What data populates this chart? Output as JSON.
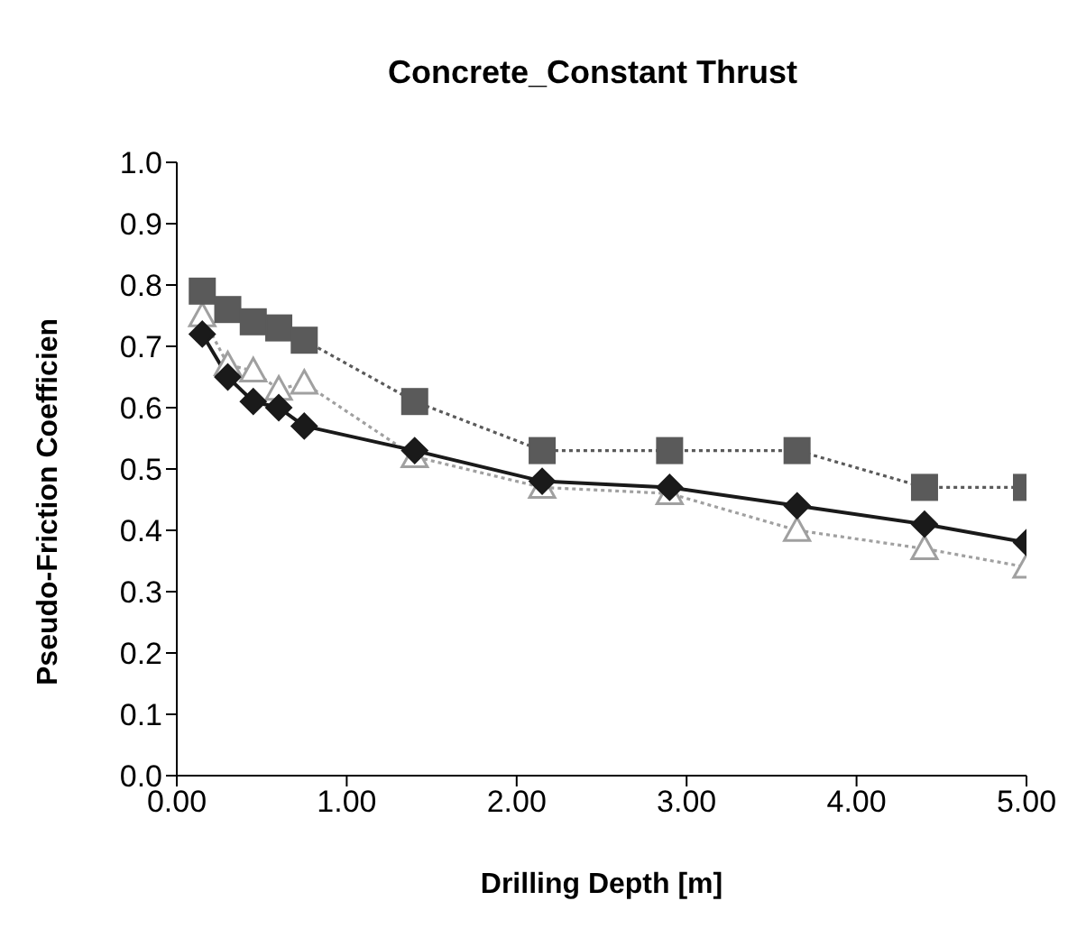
{
  "chart_data": {
    "type": "line",
    "title": "Concrete_Constant Thrust",
    "xlabel": "Drilling Depth [m]",
    "ylabel": "Pseudo-Friction Coefficien",
    "x": [
      0.15,
      0.3,
      0.45,
      0.6,
      0.75,
      1.4,
      2.15,
      2.9,
      3.65,
      4.4,
      5.0
    ],
    "series": [
      {
        "color": "#1a1a1a",
        "marker": "diamond",
        "line_style": "solid",
        "values": [
          0.72,
          0.65,
          0.61,
          0.6,
          0.57,
          0.53,
          0.48,
          0.47,
          0.44,
          0.41,
          0.38
        ]
      },
      {
        "color": "#5a5a5a",
        "marker": "square",
        "line_style": "dotted",
        "values": [
          0.79,
          0.76,
          0.74,
          0.73,
          0.71,
          0.61,
          0.53,
          0.53,
          0.53,
          0.47,
          0.47
        ]
      },
      {
        "color": "#a0a0a0",
        "marker": "triangle",
        "line_style": "dotted",
        "values": [
          0.75,
          0.67,
          0.66,
          0.63,
          0.64,
          0.52,
          0.47,
          0.46,
          0.4,
          0.37,
          0.34
        ]
      }
    ],
    "xlim": [
      0,
      5
    ],
    "xticks": [
      {
        "value": 0,
        "label": "0.00"
      },
      {
        "value": 1,
        "label": "1.00"
      },
      {
        "value": 2,
        "label": "2.00"
      },
      {
        "value": 3,
        "label": "3.00"
      },
      {
        "value": 4,
        "label": "4.00"
      },
      {
        "value": 5,
        "label": "5.00"
      }
    ],
    "ylim": [
      0,
      1
    ],
    "yticks": [
      {
        "value": 0,
        "label": "0.0"
      },
      0.1,
      0.2,
      0.3,
      0.4,
      0.5,
      0.6,
      0.7,
      0.8,
      0.9,
      {
        "value": 1,
        "label": "1.0"
      }
    ],
    "grid": false,
    "legend": false
  }
}
